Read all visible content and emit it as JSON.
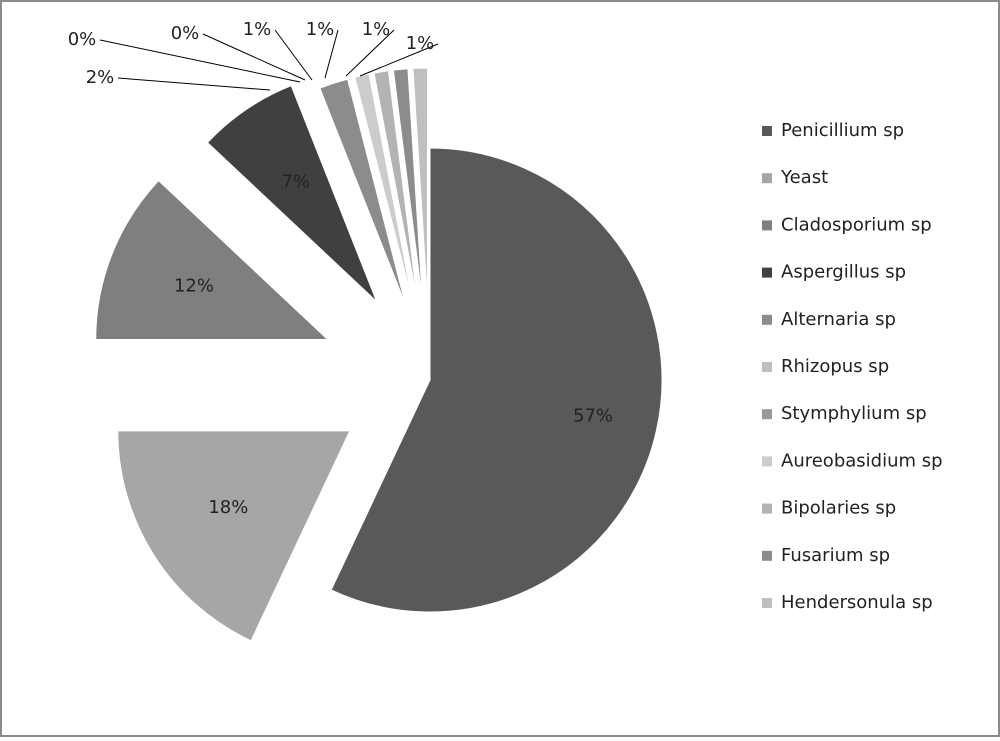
{
  "chart_data": {
    "type": "pie",
    "categories": [
      "Penicillium sp",
      "Yeast",
      "Cladosporium sp",
      "Aspergillus sp",
      "Alternaria sp",
      "Rhizopus sp",
      "Stymphylium sp",
      "Aureobasidium sp",
      "Bipolaries sp",
      "Fusarium sp",
      "Hendersonula sp"
    ],
    "values": [
      57,
      18,
      12,
      7,
      2,
      0,
      0,
      1,
      1,
      1,
      1
    ],
    "value_labels": [
      "57%",
      "18%",
      "12%",
      "7%",
      "2%",
      "0%",
      "0%",
      "1%",
      "1%",
      "1%",
      "1%"
    ],
    "colors": [
      "#595959",
      "#a6a6a6",
      "#7f7f7f",
      "#404040",
      "#8c8c8c",
      "#bfbfbf",
      "#999999",
      "#cccccc",
      "#b3b3b3",
      "#8c8c8c",
      "#bfbfbf"
    ],
    "legend": "right"
  }
}
